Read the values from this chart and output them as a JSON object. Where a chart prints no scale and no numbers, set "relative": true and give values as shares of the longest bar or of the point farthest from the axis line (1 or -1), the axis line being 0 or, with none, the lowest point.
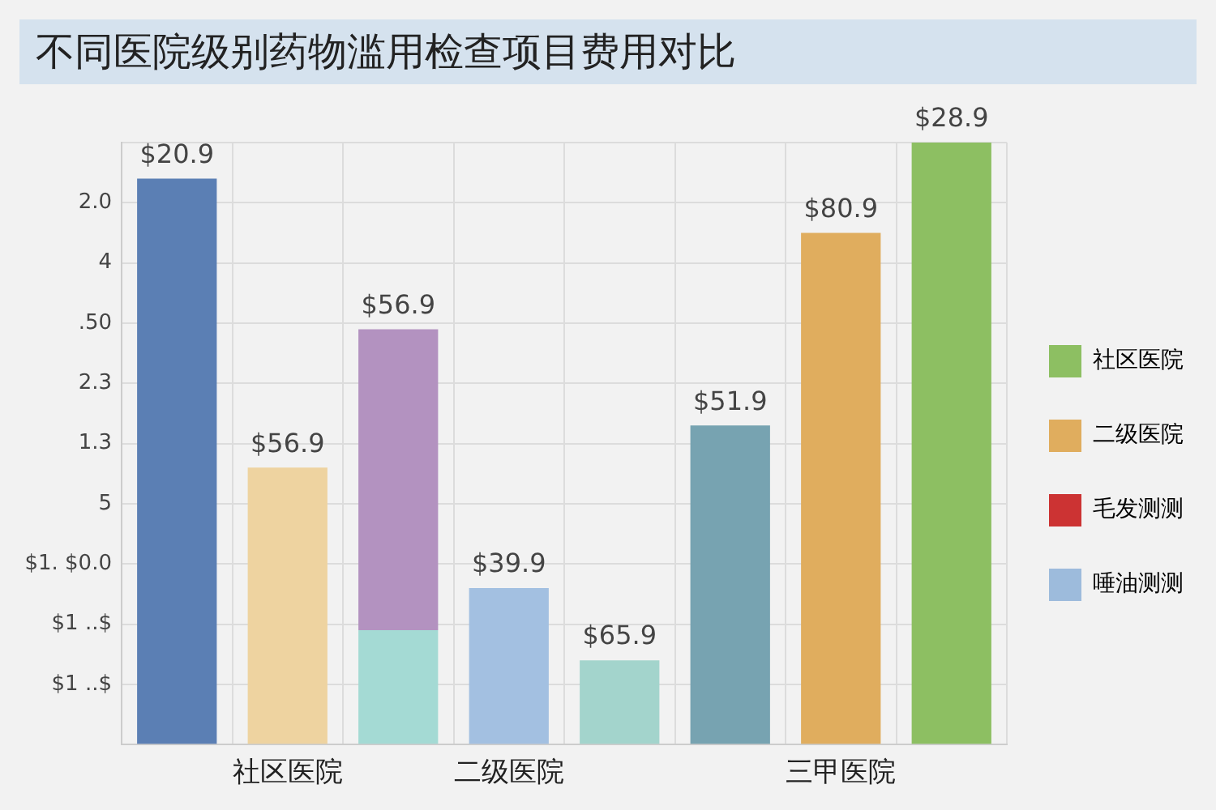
{
  "chart_data": {
    "type": "bar",
    "title": "不同医院级别药物滥用检查项目费用对比",
    "categories": [
      null,
      "社区医院",
      null,
      "二级医院",
      null,
      null,
      "三甲医院",
      null
    ],
    "stacked": true,
    "relative": true,
    "series": [
      {
        "name": "社区医院",
        "color": "#8dbf62",
        "values": [
          null,
          null,
          null,
          null,
          null,
          null,
          null,
          1
        ],
        "colors": [
          null,
          null,
          null,
          null,
          null,
          null,
          null,
          "#8dbf62"
        ]
      },
      {
        "name": "二级医院",
        "color": "#e0ad5e",
        "values": [
          null,
          0.46,
          0.19,
          null,
          null,
          null,
          0.85,
          null
        ],
        "colors": [
          null,
          "#eed3a0",
          "#a4dad4",
          null,
          null,
          null,
          "#e0ad5e",
          null
        ]
      },
      {
        "name": "毛发测测",
        "color": "#cc3333",
        "values": [
          null,
          null,
          null,
          null,
          null,
          null,
          null,
          null
        ]
      },
      {
        "name": "唾油测测",
        "color": "#9dbbdc",
        "values": [
          0.94,
          null,
          0.5,
          0.26,
          0.14,
          0.53,
          null,
          null
        ],
        "colors": [
          "#5b7fb4",
          null,
          "#b392c0",
          "#a3c0e1",
          "#a3d4cc",
          "#77a3b1",
          null,
          null
        ]
      }
    ],
    "annotations": [
      {
        "text": "$20.9",
        "y": 0.94
      },
      {
        "text": "$56.9",
        "y": 0.46
      },
      {
        "text": "$56.9",
        "y": 0.69
      },
      {
        "text": "$39.9",
        "y": 0.26
      },
      {
        "text": "$65.9",
        "y": 0.14
      },
      {
        "text": "$51.9",
        "y": 0.53
      },
      {
        "text": "$80.9",
        "y": 0.85
      },
      {
        "text": "$28.9",
        "y": 1
      },
      "2.0",
      "4",
      ".50",
      "2.3",
      "1.3",
      "5",
      "$1. $0.0",
      "$1 ..$",
      "$1 ..$"
    ],
    "grid": true,
    "legend": "right"
  }
}
